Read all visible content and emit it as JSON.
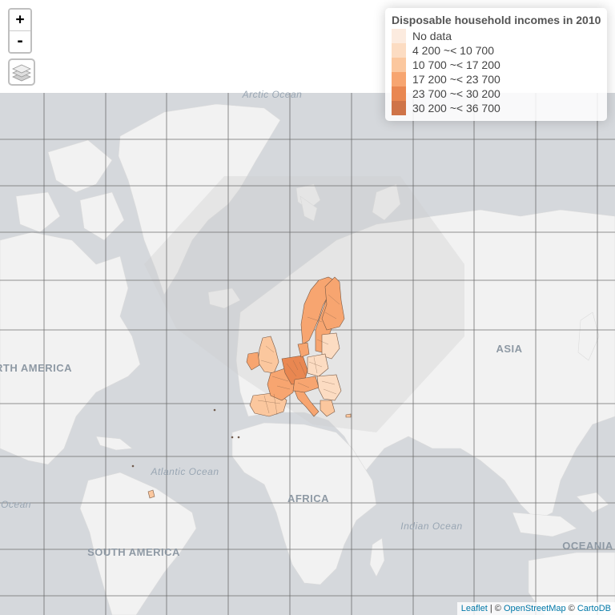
{
  "zoom": {
    "in_label": "+",
    "out_label": "-"
  },
  "layers_control": {
    "icon": "layers-icon"
  },
  "legend": {
    "title": "Disposable household incomes in 2010",
    "items": [
      {
        "label": "No data",
        "color": "#fcebdf"
      },
      {
        "label": "4 200 ~< 10 700",
        "color": "#fcdcc2"
      },
      {
        "label": "10 700 ~< 17 200",
        "color": "#fbc79e"
      },
      {
        "label": "17 200 ~< 23 700",
        "color": "#f7a570"
      },
      {
        "label": "23 700 ~< 30 200",
        "color": "#e98751"
      },
      {
        "label": "30 200 ~< 36 700",
        "color": "#cf7448"
      }
    ]
  },
  "map_labels": {
    "arctic_ocean": "Arctic Ocean",
    "north_america": "RTH AMERICA",
    "atlantic_ocean": "Atlantic Ocean",
    "ocean_left": "Ocean",
    "south_america": "SOUTH AMERICA",
    "africa": "AFRICA",
    "asia": "ASIA",
    "indian_ocean": "Indian Ocean",
    "oceania": "OCEANIA"
  },
  "attribution": {
    "leaflet": "Leaflet",
    "sep1": " | © ",
    "osm": "OpenStreetMap",
    "sep2": " © ",
    "carto": "CartoDB"
  },
  "colors": {
    "sea": "#d5d8dc",
    "land": "#f2f2f2",
    "graticule": "#5a5a5a",
    "region_stroke": "#7a5a45"
  }
}
